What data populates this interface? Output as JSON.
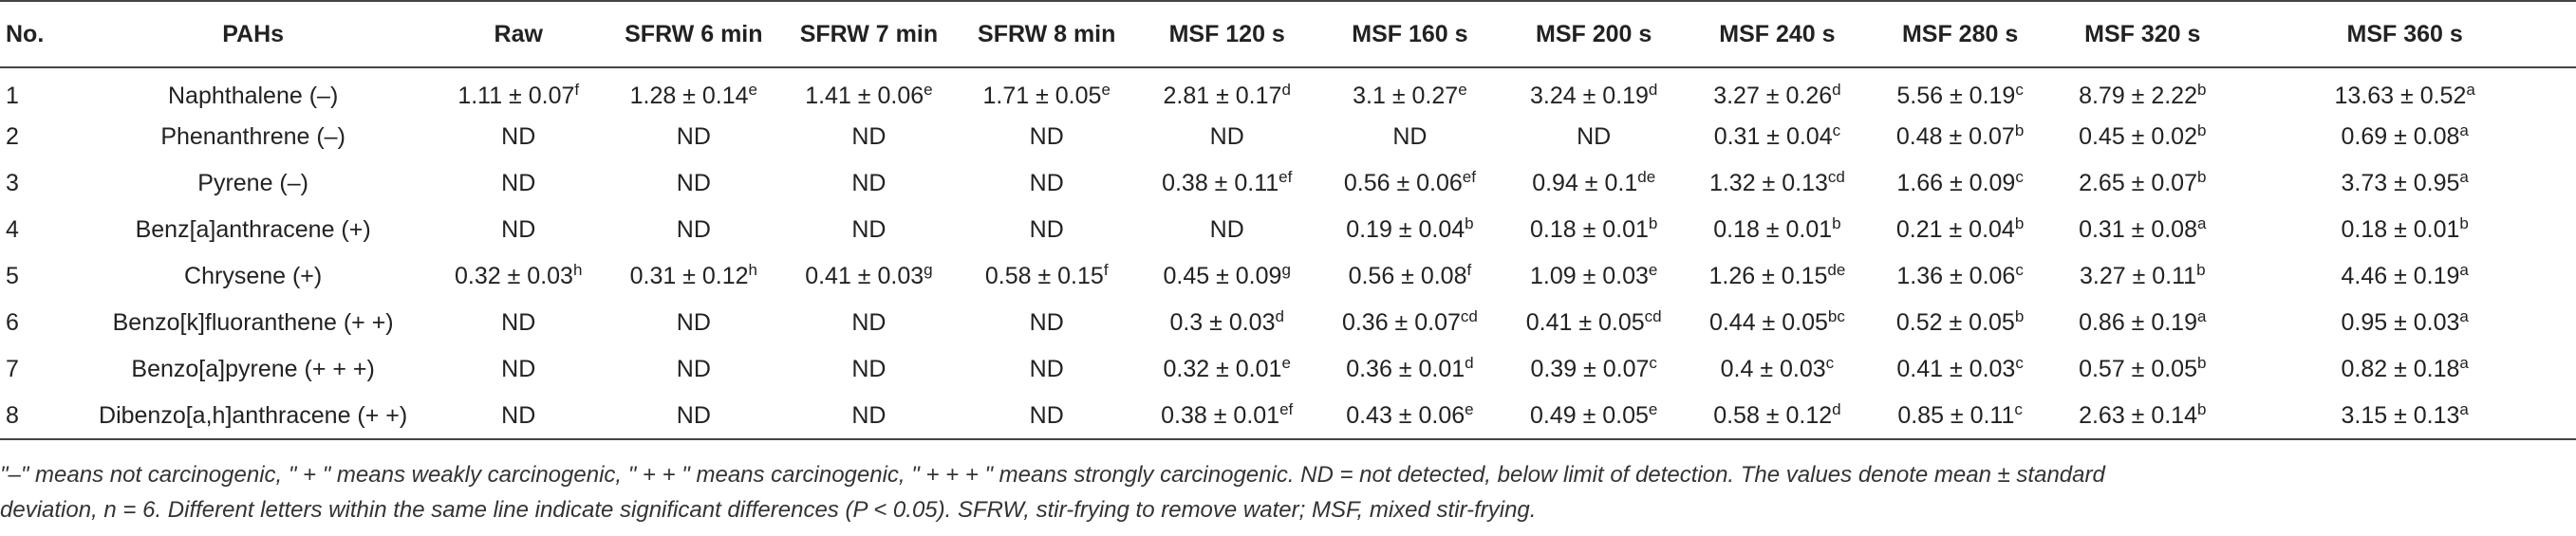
{
  "table": {
    "headers": [
      "No.",
      "PAHs",
      "Raw",
      "SFRW 6 min",
      "SFRW 7 min",
      "SFRW 8 min",
      "MSF 120 s",
      "MSF 160 s",
      "MSF 200 s",
      "MSF 240 s",
      "MSF 280 s",
      "MSF 320 s",
      "MSF 360 s"
    ],
    "rows": [
      {
        "no": "1",
        "pah": "Naphthalene (–)",
        "cells": [
          {
            "v": "1.11 ± 0.07",
            "s": "f"
          },
          {
            "v": "1.28 ± 0.14",
            "s": "e"
          },
          {
            "v": "1.41 ± 0.06",
            "s": "e"
          },
          {
            "v": "1.71 ± 0.05",
            "s": "e"
          },
          {
            "v": "2.81 ± 0.17",
            "s": "d"
          },
          {
            "v": "3.1 ± 0.27",
            "s": "e"
          },
          {
            "v": "3.24 ± 0.19",
            "s": "d"
          },
          {
            "v": "3.27 ± 0.26",
            "s": "d"
          },
          {
            "v": "5.56 ± 0.19",
            "s": "c"
          },
          {
            "v": "8.79 ± 2.22",
            "s": "b"
          },
          {
            "v": "13.63 ± 0.52",
            "s": "a"
          }
        ]
      },
      {
        "no": "2",
        "pah": "Phenanthrene (–)",
        "cells": [
          {
            "v": "ND",
            "s": ""
          },
          {
            "v": "ND",
            "s": ""
          },
          {
            "v": "ND",
            "s": ""
          },
          {
            "v": "ND",
            "s": ""
          },
          {
            "v": "ND",
            "s": ""
          },
          {
            "v": "ND",
            "s": ""
          },
          {
            "v": "ND",
            "s": ""
          },
          {
            "v": "0.31 ± 0.04",
            "s": "c"
          },
          {
            "v": "0.48 ± 0.07",
            "s": "b"
          },
          {
            "v": "0.45 ± 0.02",
            "s": "b"
          },
          {
            "v": "0.69 ± 0.08",
            "s": "a"
          }
        ]
      },
      {
        "no": "3",
        "pah": "Pyrene (–)",
        "cells": [
          {
            "v": "ND",
            "s": ""
          },
          {
            "v": "ND",
            "s": ""
          },
          {
            "v": "ND",
            "s": ""
          },
          {
            "v": "ND",
            "s": ""
          },
          {
            "v": "0.38 ± 0.11",
            "s": "ef"
          },
          {
            "v": "0.56 ± 0.06",
            "s": "ef"
          },
          {
            "v": "0.94 ± 0.1",
            "s": "de"
          },
          {
            "v": "1.32 ± 0.13",
            "s": "cd"
          },
          {
            "v": "1.66 ± 0.09",
            "s": "c"
          },
          {
            "v": "2.65 ± 0.07",
            "s": "b"
          },
          {
            "v": "3.73 ± 0.95",
            "s": "a"
          }
        ]
      },
      {
        "no": "4",
        "pah": "Benz[a]anthracene (+)",
        "cells": [
          {
            "v": "ND",
            "s": ""
          },
          {
            "v": "ND",
            "s": ""
          },
          {
            "v": "ND",
            "s": ""
          },
          {
            "v": "ND",
            "s": ""
          },
          {
            "v": "ND",
            "s": ""
          },
          {
            "v": "0.19 ± 0.04",
            "s": "b"
          },
          {
            "v": "0.18 ± 0.01",
            "s": "b"
          },
          {
            "v": "0.18 ± 0.01",
            "s": "b"
          },
          {
            "v": "0.21 ± 0.04",
            "s": "b"
          },
          {
            "v": "0.31 ± 0.08",
            "s": "a"
          },
          {
            "v": "0.18 ± 0.01",
            "s": "b"
          }
        ]
      },
      {
        "no": "5",
        "pah": "Chrysene (+)",
        "cells": [
          {
            "v": "0.32 ± 0.03",
            "s": "h"
          },
          {
            "v": "0.31 ± 0.12",
            "s": "h"
          },
          {
            "v": "0.41 ± 0.03",
            "s": "g"
          },
          {
            "v": "0.58 ± 0.15",
            "s": "f"
          },
          {
            "v": "0.45 ± 0.09",
            "s": "g"
          },
          {
            "v": "0.56 ± 0.08",
            "s": "f"
          },
          {
            "v": "1.09 ± 0.03",
            "s": "e"
          },
          {
            "v": "1.26 ± 0.15",
            "s": "de"
          },
          {
            "v": "1.36 ± 0.06",
            "s": "c"
          },
          {
            "v": "3.27 ± 0.11",
            "s": "b"
          },
          {
            "v": "4.46 ± 0.19",
            "s": "a"
          }
        ]
      },
      {
        "no": "6",
        "pah": "Benzo[k]fluoranthene (+ +)",
        "cells": [
          {
            "v": "ND",
            "s": ""
          },
          {
            "v": "ND",
            "s": ""
          },
          {
            "v": "ND",
            "s": ""
          },
          {
            "v": "ND",
            "s": ""
          },
          {
            "v": "0.3 ± 0.03",
            "s": "d"
          },
          {
            "v": "0.36 ± 0.07",
            "s": "cd"
          },
          {
            "v": "0.41 ± 0.05",
            "s": "cd"
          },
          {
            "v": "0.44 ± 0.05",
            "s": "bc"
          },
          {
            "v": "0.52 ± 0.05",
            "s": "b"
          },
          {
            "v": "0.86 ± 0.19",
            "s": "a"
          },
          {
            "v": "0.95 ± 0.03",
            "s": "a"
          }
        ]
      },
      {
        "no": "7",
        "pah": "Benzo[a]pyrene (+ + +)",
        "cells": [
          {
            "v": "ND",
            "s": ""
          },
          {
            "v": "ND",
            "s": ""
          },
          {
            "v": "ND",
            "s": ""
          },
          {
            "v": "ND",
            "s": ""
          },
          {
            "v": "0.32 ± 0.01",
            "s": "e"
          },
          {
            "v": "0.36 ± 0.01",
            "s": "d"
          },
          {
            "v": "0.39 ± 0.07",
            "s": "c"
          },
          {
            "v": "0.4 ± 0.03",
            "s": "c"
          },
          {
            "v": "0.41 ± 0.03",
            "s": "c"
          },
          {
            "v": "0.57 ± 0.05",
            "s": "b"
          },
          {
            "v": "0.82 ± 0.18",
            "s": "a"
          }
        ]
      },
      {
        "no": "8",
        "pah": "Dibenzo[a,h]anthracene (+ +)",
        "cells": [
          {
            "v": "ND",
            "s": ""
          },
          {
            "v": "ND",
            "s": ""
          },
          {
            "v": "ND",
            "s": ""
          },
          {
            "v": "ND",
            "s": ""
          },
          {
            "v": "0.38 ± 0.01",
            "s": "ef"
          },
          {
            "v": "0.43 ± 0.06",
            "s": "e"
          },
          {
            "v": "0.49 ± 0.05",
            "s": "e"
          },
          {
            "v": "0.58 ± 0.12",
            "s": "d"
          },
          {
            "v": "0.85 ± 0.11",
            "s": "c"
          },
          {
            "v": "2.63 ± 0.14",
            "s": "b"
          },
          {
            "v": "3.15 ± 0.13",
            "s": "a"
          }
        ]
      }
    ]
  },
  "footnote": {
    "line1": "\"–\" means not carcinogenic, \" + \" means weakly carcinogenic, \" + + \" means carcinogenic, \" + + + \" means strongly carcinogenic. ND = not detected, below limit of detection. The values denote mean ± standard",
    "line2": "deviation, n = 6. Different letters within the same line indicate significant differences (P < 0.05). SFRW, stir-frying to remove water; MSF, mixed stir-frying."
  }
}
